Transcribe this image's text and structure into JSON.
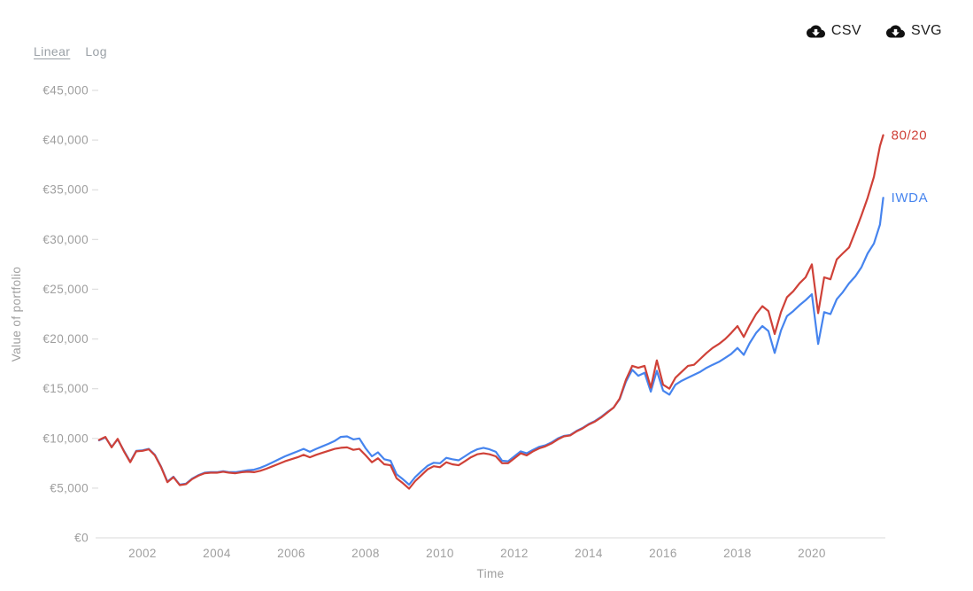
{
  "controls": {
    "scale_options": [
      {
        "label": "Linear",
        "active": true
      },
      {
        "label": "Log",
        "active": false
      }
    ],
    "downloads": [
      {
        "label": "CSV"
      },
      {
        "label": "SVG"
      }
    ]
  },
  "colors": {
    "red": "#cf4138",
    "blue": "#4684ee",
    "axis_text": "#9e9e9e",
    "axis_line": "#e0e0e0",
    "button_text": "#1c1c1c"
  },
  "chart_data": {
    "type": "line",
    "title": "",
    "xlabel": "Time",
    "ylabel": "Value of portfolio",
    "x_unit": "decimal year",
    "y_unit": "EUR",
    "xlim": [
      2000.83,
      2021.92
    ],
    "ylim": [
      0,
      45000
    ],
    "grid": false,
    "legend_position": "line-end-labels",
    "y_ticks": [
      {
        "v": 0,
        "label": "€0"
      },
      {
        "v": 5000,
        "label": "€5,000"
      },
      {
        "v": 10000,
        "label": "€10,000"
      },
      {
        "v": 15000,
        "label": "€15,000"
      },
      {
        "v": 20000,
        "label": "€20,000"
      },
      {
        "v": 25000,
        "label": "€25,000"
      },
      {
        "v": 30000,
        "label": "€30,000"
      },
      {
        "v": 35000,
        "label": "€35,000"
      },
      {
        "v": 40000,
        "label": "€40,000"
      },
      {
        "v": 45000,
        "label": "€45,000"
      }
    ],
    "x_ticks": [
      {
        "v": 2002,
        "label": "2002"
      },
      {
        "v": 2004,
        "label": "2004"
      },
      {
        "v": 2006,
        "label": "2006"
      },
      {
        "v": 2008,
        "label": "2008"
      },
      {
        "v": 2010,
        "label": "2010"
      },
      {
        "v": 2012,
        "label": "2012"
      },
      {
        "v": 2014,
        "label": "2014"
      },
      {
        "v": 2016,
        "label": "2016"
      },
      {
        "v": 2018,
        "label": "2018"
      },
      {
        "v": 2020,
        "label": "2020"
      }
    ],
    "x": [
      2000.83,
      2001,
      2001.17,
      2001.33,
      2001.5,
      2001.67,
      2001.83,
      2002,
      2002.17,
      2002.33,
      2002.5,
      2002.67,
      2002.83,
      2003,
      2003.17,
      2003.33,
      2003.5,
      2003.67,
      2003.83,
      2004,
      2004.17,
      2004.33,
      2004.5,
      2004.67,
      2004.83,
      2005,
      2005.17,
      2005.33,
      2005.5,
      2005.67,
      2005.83,
      2006,
      2006.17,
      2006.33,
      2006.5,
      2006.67,
      2006.83,
      2007,
      2007.17,
      2007.33,
      2007.5,
      2007.67,
      2007.83,
      2008,
      2008.17,
      2008.33,
      2008.5,
      2008.67,
      2008.83,
      2009,
      2009.17,
      2009.33,
      2009.5,
      2009.67,
      2009.83,
      2010,
      2010.17,
      2010.33,
      2010.5,
      2010.67,
      2010.83,
      2011,
      2011.17,
      2011.33,
      2011.5,
      2011.67,
      2011.83,
      2012,
      2012.17,
      2012.33,
      2012.5,
      2012.67,
      2012.83,
      2013,
      2013.17,
      2013.33,
      2013.5,
      2013.67,
      2013.83,
      2014,
      2014.17,
      2014.33,
      2014.5,
      2014.67,
      2014.83,
      2015,
      2015.17,
      2015.33,
      2015.5,
      2015.67,
      2015.83,
      2016,
      2016.17,
      2016.33,
      2016.5,
      2016.67,
      2016.83,
      2017,
      2017.17,
      2017.33,
      2017.5,
      2017.67,
      2017.83,
      2018,
      2018.17,
      2018.33,
      2018.5,
      2018.67,
      2018.83,
      2019,
      2019.17,
      2019.33,
      2019.5,
      2019.67,
      2019.83,
      2020,
      2020.17,
      2020.33,
      2020.5,
      2020.67,
      2020.83,
      2021,
      2021.17,
      2021.33,
      2021.5,
      2021.67,
      2021.83,
      2021.92
    ],
    "series": [
      {
        "name": "IWDA",
        "color": "#4684ee",
        "values": [
          9800,
          10100,
          9150,
          9900,
          8750,
          7650,
          8750,
          8800,
          8950,
          8350,
          7150,
          5650,
          6150,
          5350,
          5450,
          5950,
          6300,
          6550,
          6600,
          6600,
          6700,
          6600,
          6600,
          6700,
          6800,
          6850,
          7050,
          7300,
          7600,
          7900,
          8200,
          8450,
          8700,
          8950,
          8650,
          8950,
          9200,
          9450,
          9750,
          10150,
          10200,
          9900,
          10000,
          9000,
          8200,
          8600,
          7900,
          7750,
          6400,
          5900,
          5350,
          6100,
          6700,
          7250,
          7550,
          7500,
          8050,
          7900,
          7800,
          8200,
          8600,
          8900,
          9050,
          8900,
          8650,
          7750,
          7700,
          8200,
          8700,
          8500,
          8850,
          9150,
          9300,
          9600,
          10000,
          10250,
          10350,
          10750,
          11050,
          11450,
          11750,
          12150,
          12650,
          13100,
          13950,
          15700,
          16900,
          16300,
          16600,
          14700,
          16800,
          14800,
          14400,
          15400,
          15800,
          16100,
          16400,
          16700,
          17100,
          17400,
          17700,
          18100,
          18500,
          19100,
          18400,
          19600,
          20600,
          21300,
          20800,
          18600,
          20850,
          22300,
          22800,
          23400,
          23900,
          24500,
          19500,
          22700,
          22500,
          24000,
          24700,
          25600,
          26300,
          27200,
          28600,
          29600,
          31500,
          34200
        ]
      },
      {
        "name": "80/20",
        "color": "#cf4138",
        "values": [
          9850,
          10150,
          9100,
          9950,
          8700,
          7600,
          8700,
          8750,
          8900,
          8300,
          7100,
          5600,
          6100,
          5300,
          5400,
          5900,
          6250,
          6500,
          6550,
          6550,
          6650,
          6550,
          6500,
          6600,
          6650,
          6600,
          6750,
          6950,
          7200,
          7450,
          7700,
          7900,
          8100,
          8350,
          8100,
          8350,
          8550,
          8750,
          8950,
          9050,
          9100,
          8850,
          8950,
          8300,
          7600,
          8000,
          7400,
          7300,
          6000,
          5500,
          4950,
          5700,
          6300,
          6900,
          7200,
          7100,
          7600,
          7400,
          7300,
          7700,
          8100,
          8400,
          8500,
          8400,
          8200,
          7500,
          7500,
          8000,
          8500,
          8300,
          8700,
          9000,
          9200,
          9500,
          9900,
          10200,
          10300,
          10700,
          11000,
          11400,
          11700,
          12100,
          12600,
          13100,
          14000,
          15900,
          17300,
          17100,
          17300,
          15100,
          17850,
          15400,
          15000,
          16100,
          16700,
          17300,
          17400,
          18000,
          18600,
          19100,
          19500,
          20000,
          20600,
          21300,
          20200,
          21400,
          22500,
          23300,
          22800,
          20500,
          22700,
          24200,
          24800,
          25600,
          26200,
          27500,
          22600,
          26200,
          26000,
          28000,
          28600,
          29200,
          30800,
          32400,
          34200,
          36300,
          39400,
          40500
        ]
      }
    ]
  }
}
